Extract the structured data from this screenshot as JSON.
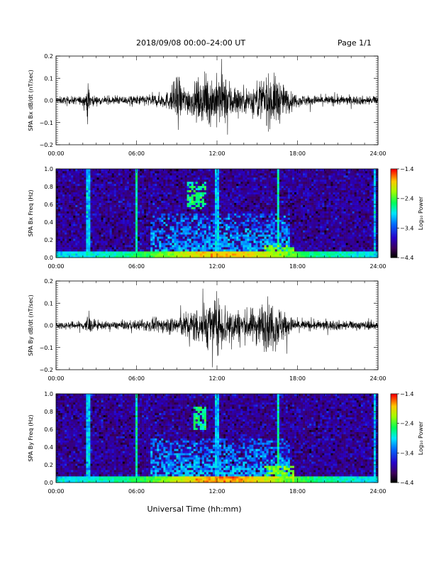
{
  "header": {
    "title": "2018/09/08  00:00–24:00 UT",
    "page": "Page 1/1"
  },
  "x_axis": {
    "ticks": [
      "00:00",
      "06:00",
      "12:00",
      "18:00",
      "24:00"
    ],
    "label": "Universal Time (hh:mm)"
  },
  "chart_data": [
    {
      "type": "line",
      "ylabel": "SPA Bx dB/dt (nT/sec)",
      "xlim": [
        0,
        24
      ],
      "ylim": [
        -0.2,
        0.2
      ],
      "y_ticks": [
        "0.2",
        "0.1",
        "0.0",
        "−0.1",
        "−0.2"
      ],
      "x": [
        0,
        1,
        2,
        2.4,
        2.6,
        3,
        4,
        5,
        6,
        7,
        8,
        8.5,
        9,
        9.5,
        10,
        10.5,
        11,
        11.5,
        12,
        12.5,
        13,
        13.5,
        14,
        14.5,
        15,
        15.5,
        16,
        16.5,
        17,
        17.5,
        18,
        19,
        20,
        21,
        22,
        23,
        24
      ],
      "envelope": [
        0.03,
        0.03,
        0.035,
        0.13,
        0.05,
        0.035,
        0.03,
        0.035,
        0.04,
        0.05,
        0.06,
        0.08,
        0.2,
        0.12,
        0.12,
        0.15,
        0.18,
        0.2,
        0.2,
        0.2,
        0.16,
        0.12,
        0.1,
        0.12,
        0.15,
        0.2,
        0.2,
        0.2,
        0.12,
        0.07,
        0.05,
        0.04,
        0.04,
        0.04,
        0.035,
        0.035,
        0.035
      ]
    },
    {
      "type": "heatmap",
      "ylabel": "SPA Bx Freq (Hz)",
      "xlim": [
        0,
        24
      ],
      "ylim": [
        0.0,
        1.0
      ],
      "y_ticks": [
        "1.0",
        "0.8",
        "0.6",
        "0.4",
        "0.2",
        "0.0"
      ],
      "colorbar": {
        "label": "Log₁₀ Power",
        "ticks": [
          "−1.4",
          "−2.4",
          "−3.4",
          "−4.4"
        ],
        "range": [
          -4.4,
          -1.4
        ]
      },
      "background_log_power": -3.9,
      "features": [
        {
          "kind": "low_band",
          "max_freq": 0.06,
          "peak_hour": 12.5,
          "peak_log_power": -1.8
        },
        {
          "kind": "vertical_stripe",
          "hour": 2.4,
          "log_power": -3.0
        },
        {
          "kind": "vertical_stripe",
          "hour": 6.0,
          "log_power": -2.7
        },
        {
          "kind": "vertical_stripe",
          "hour": 12.0,
          "log_power": -3.0
        },
        {
          "kind": "vertical_stripe",
          "hour": 16.6,
          "log_power": -2.7
        },
        {
          "kind": "vertical_stripe",
          "hour": 23.8,
          "log_power": -3.0
        },
        {
          "kind": "blob",
          "hour_range": [
            9.8,
            11.2
          ],
          "freq_range": [
            0.55,
            0.85
          ],
          "log_power": -2.6
        },
        {
          "kind": "broadband",
          "hour_range": [
            7.0,
            17.5
          ],
          "freq_range": [
            0.0,
            0.5
          ],
          "log_power": -3.3
        },
        {
          "kind": "hot_patch",
          "hour_range": [
            15.5,
            17.8
          ],
          "freq_range": [
            0.0,
            0.15
          ],
          "log_power": -2.3
        }
      ]
    },
    {
      "type": "line",
      "ylabel": "SPA By dB/dt (nT/sec)",
      "xlim": [
        0,
        24
      ],
      "ylim": [
        -0.2,
        0.2
      ],
      "y_ticks": [
        "0.2",
        "0.1",
        "0.0",
        "−0.1",
        "−0.2"
      ],
      "x": [
        0,
        1,
        2,
        2.4,
        2.6,
        3,
        4,
        5,
        6,
        7,
        8,
        9,
        10,
        10.5,
        11,
        11.5,
        12,
        12.5,
        13,
        13.5,
        14,
        14.5,
        15,
        15.5,
        16,
        16.5,
        17,
        17.5,
        18,
        19,
        20,
        21,
        22,
        23,
        24
      ],
      "envelope": [
        0.03,
        0.03,
        0.035,
        0.11,
        0.05,
        0.035,
        0.03,
        0.035,
        0.04,
        0.05,
        0.06,
        0.08,
        0.12,
        0.15,
        0.18,
        0.2,
        0.2,
        0.2,
        0.16,
        0.13,
        0.12,
        0.13,
        0.16,
        0.2,
        0.2,
        0.18,
        0.12,
        0.07,
        0.05,
        0.04,
        0.04,
        0.04,
        0.035,
        0.035,
        0.035
      ]
    },
    {
      "type": "heatmap",
      "ylabel": "SPA By Freq (Hz)",
      "xlim": [
        0,
        24
      ],
      "ylim": [
        0.0,
        1.0
      ],
      "y_ticks": [
        "1.0",
        "0.8",
        "0.6",
        "0.4",
        "0.2",
        "0.0"
      ],
      "colorbar": {
        "label": "Log₁₀ Power",
        "ticks": [
          "−1.4",
          "−2.4",
          "−3.4",
          "−4.4"
        ],
        "range": [
          -4.4,
          -1.4
        ]
      },
      "background_log_power": -3.9,
      "features": [
        {
          "kind": "low_band",
          "max_freq": 0.06,
          "peak_hour": 12.5,
          "peak_log_power": -1.7
        },
        {
          "kind": "vertical_stripe",
          "hour": 2.4,
          "log_power": -3.0
        },
        {
          "kind": "vertical_stripe",
          "hour": 6.0,
          "log_power": -2.7
        },
        {
          "kind": "vertical_stripe",
          "hour": 12.0,
          "log_power": -3.0
        },
        {
          "kind": "vertical_stripe",
          "hour": 16.6,
          "log_power": -2.7
        },
        {
          "kind": "vertical_stripe",
          "hour": 23.8,
          "log_power": -3.0
        },
        {
          "kind": "blob",
          "hour_range": [
            10.2,
            11.2
          ],
          "freq_range": [
            0.6,
            0.85
          ],
          "log_power": -2.6
        },
        {
          "kind": "broadband",
          "hour_range": [
            7.0,
            17.5
          ],
          "freq_range": [
            0.0,
            0.5
          ],
          "log_power": -3.3
        },
        {
          "kind": "hot_patch",
          "hour_range": [
            15.5,
            17.8
          ],
          "freq_range": [
            0.0,
            0.2
          ],
          "log_power": -2.3
        }
      ]
    }
  ]
}
